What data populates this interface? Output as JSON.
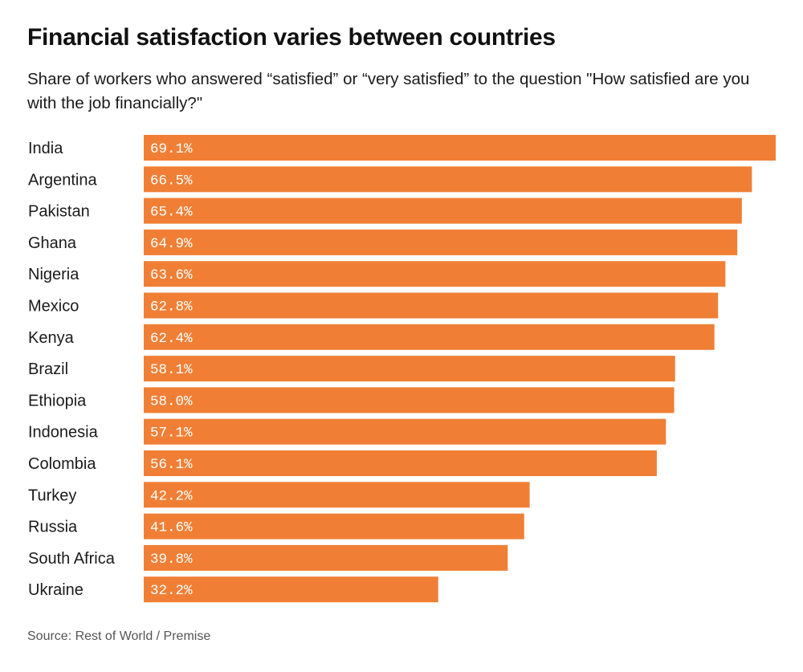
{
  "title": "Financial satisfaction varies between countries",
  "subtitle": "Share of workers who answered “satisfied” or “very satisfied” to the question \"How satisfied are you with the job financially?\"",
  "source": "Source: Rest of World / Premise",
  "colors": {
    "bar": "#f07f35",
    "bar_label": "#ffffff",
    "category_label": "#1a1a1a"
  },
  "chart_data": {
    "type": "bar",
    "orientation": "horizontal",
    "title": "Financial satisfaction varies between countries",
    "categories": [
      "India",
      "Argentina",
      "Pakistan",
      "Ghana",
      "Nigeria",
      "Mexico",
      "Kenya",
      "Brazil",
      "Ethiopia",
      "Indonesia",
      "Colombia",
      "Turkey",
      "Russia",
      "South Africa",
      "Ukraine"
    ],
    "values": [
      69.1,
      66.5,
      65.4,
      64.9,
      63.6,
      62.8,
      62.4,
      58.1,
      58.0,
      57.1,
      56.1,
      42.2,
      41.6,
      39.8,
      32.2
    ],
    "value_labels": [
      "69.1%",
      "66.5%",
      "65.4%",
      "64.9%",
      "63.6%",
      "62.8%",
      "62.4%",
      "58.1%",
      "58.0%",
      "57.1%",
      "56.1%",
      "42.2%",
      "41.6%",
      "39.8%",
      "32.2%"
    ],
    "unit": "%",
    "xlim": [
      0,
      69.1
    ],
    "grid": false,
    "legend": "none"
  }
}
